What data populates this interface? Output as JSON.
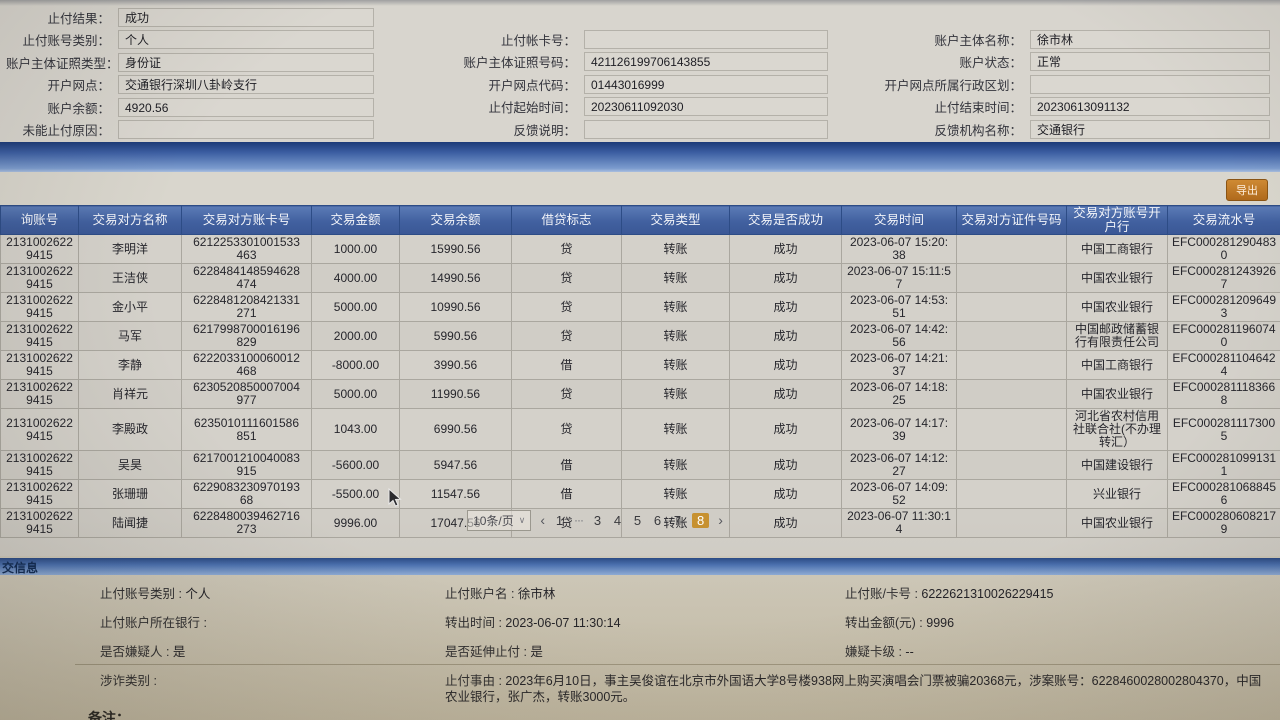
{
  "top_form": {
    "left": [
      {
        "label": "止付结果",
        "value": "成功"
      },
      {
        "label": "止付账号类别",
        "value": "个人"
      },
      {
        "label": "账户主体证照类型",
        "value": "身份证"
      },
      {
        "label": "开户网点",
        "value": "交通银行深圳八卦岭支行"
      },
      {
        "label": "账户余额",
        "value": "4920.56"
      },
      {
        "label": "未能止付原因",
        "value": ""
      }
    ],
    "middle": [
      {
        "label": "止付帐卡号",
        "value": ""
      },
      {
        "label": "账户主体证照号码",
        "value": "421126199706143855"
      },
      {
        "label": "开户网点代码",
        "value": "01443016999"
      },
      {
        "label": "止付起始时间",
        "value": "20230611092030"
      },
      {
        "label": "反馈说明",
        "value": ""
      }
    ],
    "right": [
      {
        "label": "账户主体名称",
        "value": "徐市林"
      },
      {
        "label": "账户状态",
        "value": "正常"
      },
      {
        "label": "开户网点所属行政区划",
        "value": ""
      },
      {
        "label": "止付结束时间",
        "value": "20230613091132"
      },
      {
        "label": "反馈机构名称",
        "value": "交通银行"
      }
    ]
  },
  "toolbar": {
    "export_label": "导出"
  },
  "table": {
    "headers": [
      "询账号",
      "交易对方名称",
      "交易对方账卡号",
      "交易金额",
      "交易余额",
      "借贷标志",
      "交易类型",
      "交易是否成功",
      "交易时间",
      "交易对方证件号码",
      "交易对方账号开户行",
      "交易流水号"
    ],
    "rows": [
      [
        "21310026229415",
        "李明洋",
        "6212253301001533463",
        "1000.00",
        "15990.56",
        "贷",
        "转账",
        "成功",
        "2023-06-07 15:20:38",
        "",
        "中国工商银行",
        "EFC0002812904830"
      ],
      [
        "21310026229415",
        "王洁侠",
        "6228484148594628474",
        "4000.00",
        "14990.56",
        "贷",
        "转账",
        "成功",
        "2023-06-07 15:11:57",
        "",
        "中国农业银行",
        "EFC0002812439267"
      ],
      [
        "21310026229415",
        "金小平",
        "6228481208421331271",
        "5000.00",
        "10990.56",
        "贷",
        "转账",
        "成功",
        "2023-06-07 14:53:51",
        "",
        "中国农业银行",
        "EFC0002812096493"
      ],
      [
        "21310026229415",
        "马军",
        "6217998700016196829",
        "2000.00",
        "5990.56",
        "贷",
        "转账",
        "成功",
        "2023-06-07 14:42:56",
        "",
        "中国邮政储蓄银行有限责任公司",
        "EFC0002811960740"
      ],
      [
        "21310026229415",
        "李静",
        "6222033100060012468",
        "-8000.00",
        "3990.56",
        "借",
        "转账",
        "成功",
        "2023-06-07 14:21:37",
        "",
        "中国工商银行",
        "EFC0002811046424"
      ],
      [
        "21310026229415",
        "肖祥元",
        "6230520850007004977",
        "5000.00",
        "11990.56",
        "贷",
        "转账",
        "成功",
        "2023-06-07 14:18:25",
        "",
        "中国农业银行",
        "EFC0002811183668"
      ],
      [
        "21310026229415",
        "李殿政",
        "6235010111601586851",
        "1043.00",
        "6990.56",
        "贷",
        "转账",
        "成功",
        "2023-06-07 14:17:39",
        "",
        "河北省农村信用社联合社(不办理转汇）",
        "EFC0002811173005"
      ],
      [
        "21310026229415",
        "吴昊",
        "6217001210040083915",
        "-5600.00",
        "5947.56",
        "借",
        "转账",
        "成功",
        "2023-06-07 14:12:27",
        "",
        "中国建设银行",
        "EFC0002810991311"
      ],
      [
        "21310026229415",
        "张珊珊",
        "622908323097019368",
        "-5500.00",
        "11547.56",
        "借",
        "转账",
        "成功",
        "2023-06-07 14:09:52",
        "",
        "兴业银行",
        "EFC0002810688456"
      ],
      [
        "21310026229415",
        "陆闻捷",
        "6228480039462716273",
        "9996.00",
        "17047.56",
        "贷",
        "转账",
        "成功",
        "2023-06-07 11:30:14",
        "",
        "中国农业银行",
        "EFC0002806082179"
      ]
    ]
  },
  "pagination": {
    "page_size_label": "10条/页",
    "items": [
      {
        "label": "‹",
        "kind": "prev"
      },
      {
        "label": "1",
        "kind": "page"
      },
      {
        "label": "···",
        "kind": "ellipsis"
      },
      {
        "label": "3",
        "kind": "page"
      },
      {
        "label": "4",
        "kind": "page"
      },
      {
        "label": "5",
        "kind": "page"
      },
      {
        "label": "6",
        "kind": "page"
      },
      {
        "label": "7",
        "kind": "page"
      },
      {
        "label": "8",
        "kind": "page",
        "active": true
      },
      {
        "label": "›",
        "kind": "next"
      }
    ]
  },
  "bottom": {
    "bar_title": "交信息",
    "left": [
      {
        "label": "止付账号类别",
        "value": "个人"
      },
      {
        "label": "止付账户所在银行",
        "value": ""
      },
      {
        "label": "是否嫌疑人",
        "value": "是"
      },
      {
        "label": "涉诈类别",
        "value": ""
      }
    ],
    "middle": [
      {
        "label": "止付账户名",
        "value": "徐市林"
      },
      {
        "label": "转出时间",
        "value": "2023-06-07 11:30:14"
      },
      {
        "label": "是否延伸止付",
        "value": "是"
      },
      {
        "label": "止付事由",
        "value": "2023年6月10日，事主吴俊谊在北京市外国语大学8号楼938网上购买演唱会门票被骗20368元，涉案账号：6228460028002804370，中国农业银行，张广杰，转账3000元。"
      }
    ],
    "right": [
      {
        "label": "止付账/卡号",
        "value": "6222621310026229415"
      },
      {
        "label": "转出金额(元)",
        "value": "9996"
      },
      {
        "label": "嫌疑卡级",
        "value": "--"
      }
    ],
    "partial_note": "备注："
  },
  "colors": {
    "table_header_blue": "#41609f",
    "section_bar_blue": "#3c5ea2",
    "active_page_orange": "#c79130",
    "export_button_orange": "#b06a1c",
    "panel_background": "#d8d5ce"
  }
}
